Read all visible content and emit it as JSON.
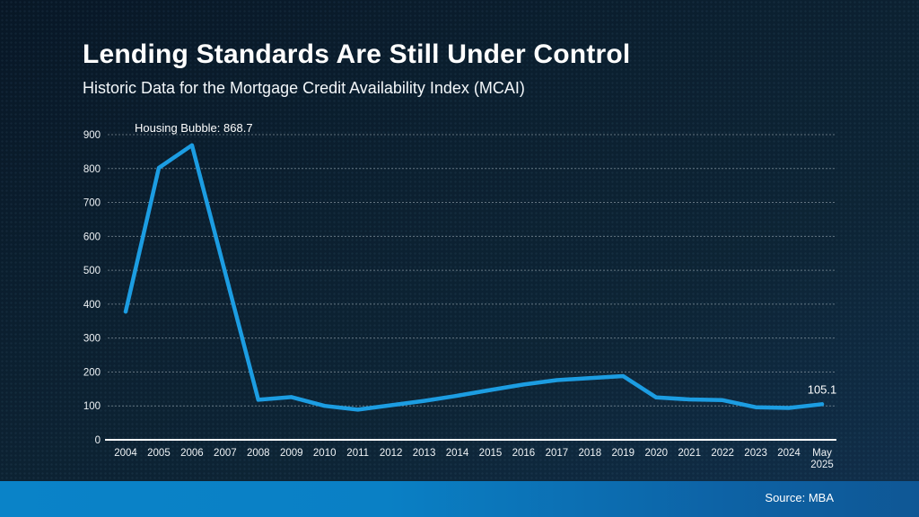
{
  "header": {
    "title": "Lending Standards Are Still Under Control",
    "subtitle": "Historic Data for the Mortgage Credit Availability Index (MCAI)"
  },
  "footer": {
    "source": "Source: MBA"
  },
  "chart_data": {
    "type": "line",
    "title": "Lending Standards Are Still Under Control",
    "subtitle": "Historic Data for the Mortgage Credit Availability Index (MCAI)",
    "categories": [
      "2004",
      "2005",
      "2006",
      "2007",
      "2008",
      "2009",
      "2010",
      "2011",
      "2012",
      "2013",
      "2014",
      "2015",
      "2016",
      "2017",
      "2018",
      "2019",
      "2020",
      "2021",
      "2022",
      "2023",
      "2024",
      "May 2025"
    ],
    "values": [
      378,
      802,
      868.7,
      493,
      118,
      126,
      100,
      89,
      102,
      115,
      130,
      147,
      163,
      176,
      182,
      188,
      125,
      119,
      117,
      96,
      94,
      105.1
    ],
    "xlabel": "",
    "ylabel": "",
    "ylim": [
      0,
      900
    ],
    "ytick_step": 100,
    "grid": true,
    "legend": false,
    "annotation": "Housing Bubble: 868.7",
    "end_label": "105.1",
    "line_color": "#1c9de2",
    "grid_color": "#aab7c0",
    "axis_color": "#ffffff",
    "label_color": "#eef2f5"
  }
}
